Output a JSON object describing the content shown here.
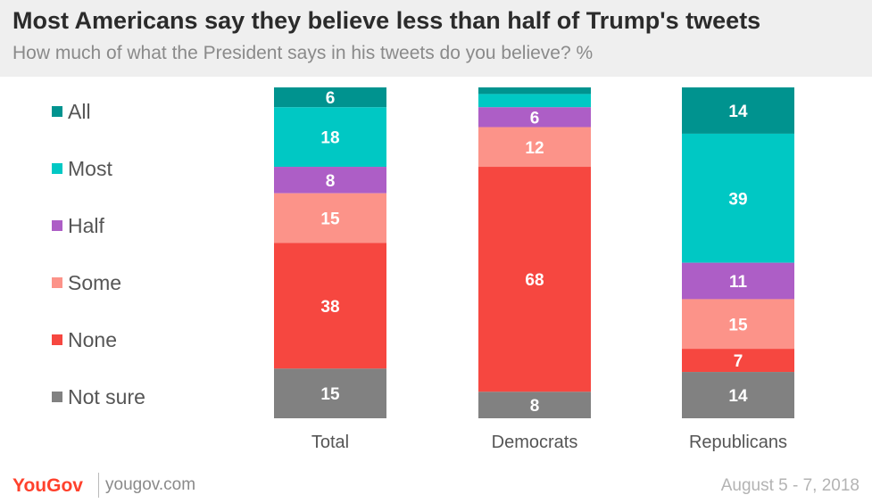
{
  "chart_data": {
    "type": "bar",
    "orientation": "vertical",
    "stacked": true,
    "title": "Most Americans say they believe less than half of Trump's tweets",
    "subtitle": "How much of what the President says in his tweets do you believe? %",
    "categories": [
      "Total",
      "Democrats",
      "Republicans"
    ],
    "series": [
      {
        "name": "All",
        "color": "#00938f",
        "values": [
          6,
          2,
          14
        ],
        "labels": [
          "6",
          "",
          "14"
        ]
      },
      {
        "name": "Most",
        "color": "#00c8c4",
        "values": [
          18,
          4,
          39
        ],
        "labels": [
          "18",
          "",
          "39"
        ]
      },
      {
        "name": "Half",
        "color": "#ad5ec6",
        "values": [
          8,
          6,
          11
        ],
        "labels": [
          "8",
          "6",
          "11"
        ]
      },
      {
        "name": "Some",
        "color": "#fc9389",
        "values": [
          15,
          12,
          15
        ],
        "labels": [
          "15",
          "12",
          "15"
        ]
      },
      {
        "name": "None",
        "color": "#f64740",
        "values": [
          38,
          68,
          7
        ],
        "labels": [
          "38",
          "68",
          "7"
        ]
      },
      {
        "name": "Not sure",
        "color": "#818181",
        "values": [
          15,
          8,
          14
        ],
        "labels": [
          "15",
          "8",
          "14"
        ]
      }
    ],
    "legend": "left"
  },
  "footer": {
    "brand": "YouGov",
    "site": "yougov.com",
    "date": "August 5 - 7, 2018"
  }
}
